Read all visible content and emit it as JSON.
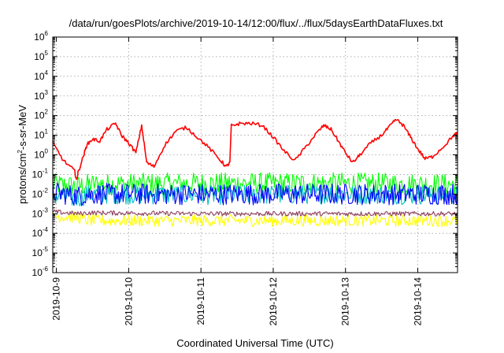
{
  "chart_data": {
    "type": "line",
    "title": "/data/run/goesPlots/archive/2019-10-14/12:00/flux/../flux/5daysEarthDataFluxes.txt",
    "xlabel": "Coordinated Universal Time (UTC)",
    "ylabel_parts": [
      "protons/cm",
      "2",
      "-s-sr-MeV"
    ],
    "y_scale": "log",
    "ylim_exp": [
      -6,
      6
    ],
    "y_ticks": [
      {
        "base": "10",
        "exp": "-6",
        "e": -6
      },
      {
        "base": "10",
        "exp": "-5",
        "e": -5
      },
      {
        "base": "10",
        "exp": "-4",
        "e": -4
      },
      {
        "base": "10",
        "exp": "-3",
        "e": -3
      },
      {
        "base": "10",
        "exp": "-2",
        "e": -2
      },
      {
        "base": "10",
        "exp": "-1",
        "e": -1
      },
      {
        "base": "10",
        "exp": "0",
        "e": 0
      },
      {
        "base": "10",
        "exp": "1",
        "e": 1
      },
      {
        "base": "10",
        "exp": "2",
        "e": 2
      },
      {
        "base": "10",
        "exp": "3",
        "e": 3
      },
      {
        "base": "10",
        "exp": "4",
        "e": 4
      },
      {
        "base": "10",
        "exp": "5",
        "e": 5
      },
      {
        "base": "10",
        "exp": "6",
        "e": 6
      }
    ],
    "x_range_days": [
      -0.05,
      5.55
    ],
    "x_ticks": [
      {
        "label": "2019-10-9",
        "day": 0
      },
      {
        "label": "2019-10-10",
        "day": 1
      },
      {
        "label": "2019-10-11",
        "day": 2
      },
      {
        "label": "2019-10-12",
        "day": 3
      },
      {
        "label": "2019-10-13",
        "day": 4
      },
      {
        "label": "2019-10-14",
        "day": 5
      }
    ],
    "grid": true,
    "series": [
      {
        "color": "#ff0000",
        "kind": "smooth",
        "points": [
          [
            -0.05,
            0.6
          ],
          [
            0.1,
            -0.3
          ],
          [
            0.25,
            -0.8
          ],
          [
            0.28,
            -1.3
          ],
          [
            0.3,
            -0.9
          ],
          [
            0.38,
            0.0
          ],
          [
            0.42,
            0.5
          ],
          [
            0.5,
            0.8
          ],
          [
            0.6,
            0.7
          ],
          [
            0.7,
            1.3
          ],
          [
            0.82,
            1.6
          ],
          [
            0.9,
            1.0
          ],
          [
            1.0,
            0.6
          ],
          [
            1.1,
            0.1
          ],
          [
            1.18,
            1.5
          ],
          [
            1.25,
            -0.4
          ],
          [
            1.35,
            -0.6
          ],
          [
            1.5,
            0.5
          ],
          [
            1.65,
            1.2
          ],
          [
            1.8,
            1.4
          ],
          [
            1.95,
            0.9
          ],
          [
            2.1,
            0.4
          ],
          [
            2.25,
            -0.2
          ],
          [
            2.35,
            -0.6
          ],
          [
            2.4,
            -0.4
          ],
          [
            2.42,
            1.5
          ],
          [
            2.55,
            1.6
          ],
          [
            2.7,
            1.6
          ],
          [
            2.85,
            1.5
          ],
          [
            3.0,
            0.9
          ],
          [
            3.15,
            0.2
          ],
          [
            3.3,
            -0.3
          ],
          [
            3.45,
            0.4
          ],
          [
            3.6,
            1.1
          ],
          [
            3.7,
            1.5
          ],
          [
            3.8,
            1.3
          ],
          [
            3.9,
            0.7
          ],
          [
            4.0,
            0.1
          ],
          [
            4.1,
            -0.4
          ],
          [
            4.2,
            0.0
          ],
          [
            4.35,
            0.6
          ],
          [
            4.5,
            1.0
          ],
          [
            4.6,
            1.4
          ],
          [
            4.7,
            1.8
          ],
          [
            4.8,
            1.5
          ],
          [
            4.9,
            0.9
          ],
          [
            5.0,
            0.3
          ],
          [
            5.1,
            -0.2
          ],
          [
            5.2,
            -0.1
          ],
          [
            5.35,
            0.4
          ],
          [
            5.5,
            1.0
          ],
          [
            5.55,
            1.1
          ]
        ]
      },
      {
        "color": "#00ff00",
        "kind": "noise",
        "base": [
          [
            -0.05,
            -1.5
          ],
          [
            0.3,
            -1.6
          ],
          [
            0.45,
            -1.5
          ],
          [
            2.0,
            -1.45
          ],
          [
            4.0,
            -1.45
          ],
          [
            5.55,
            -1.5
          ]
        ],
        "amplitude": 0.55
      },
      {
        "color": "#00c0c0",
        "kind": "noise",
        "base": [
          [
            -0.05,
            -2.1
          ],
          [
            0.3,
            -2.2
          ],
          [
            0.45,
            -2.0
          ],
          [
            2.0,
            -2.05
          ],
          [
            4.0,
            -2.0
          ],
          [
            5.55,
            -2.05
          ]
        ],
        "amplitude": 0.5
      },
      {
        "color": "#0000ff",
        "kind": "noise",
        "base": [
          [
            -0.05,
            -1.9
          ],
          [
            0.3,
            -2.1
          ],
          [
            0.45,
            -2.0
          ],
          [
            2.0,
            -2.0
          ],
          [
            4.0,
            -2.0
          ],
          [
            5.55,
            -2.0
          ]
        ],
        "amplitude": 0.55
      },
      {
        "color": "#ffff00",
        "kind": "noise",
        "base": [
          [
            -0.05,
            -3.1
          ],
          [
            0.3,
            -3.2
          ],
          [
            0.45,
            -3.35
          ],
          [
            2.0,
            -3.35
          ],
          [
            4.0,
            -3.35
          ],
          [
            5.55,
            -3.35
          ]
        ],
        "amplitude": 0.3
      },
      {
        "color": "#904060",
        "kind": "noise",
        "base": [
          [
            -0.05,
            -2.9
          ],
          [
            0.3,
            -3.0
          ],
          [
            0.45,
            -2.95
          ],
          [
            2.0,
            -3.0
          ],
          [
            4.0,
            -3.0
          ],
          [
            5.55,
            -3.0
          ]
        ],
        "amplitude": 0.12
      }
    ]
  }
}
